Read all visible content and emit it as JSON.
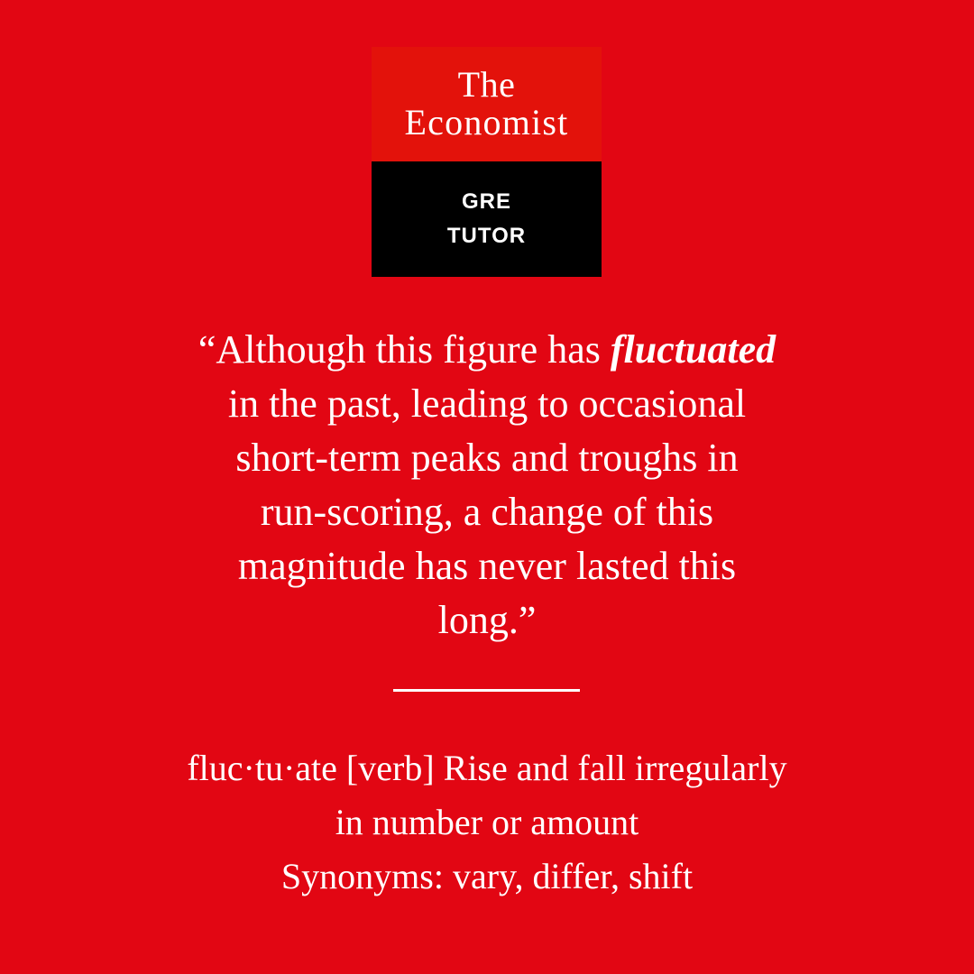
{
  "logo": {
    "name_line1": "The",
    "name_line2": "Economist",
    "sub_line1": "GRE",
    "sub_line2": "TUTOR"
  },
  "quote": {
    "line1_before": "“Although this figure has ",
    "line1_word": "fluctuated",
    "line2": "in the past, leading to occasional",
    "line3": "short-term peaks and troughs in",
    "line4": "run-scoring, a change of this",
    "line5": "magnitude has never lasted this",
    "line6": "long.”"
  },
  "definition": {
    "line1": "fluc·tu·ate [verb] Rise and fall irregularly",
    "line2": "in number or amount",
    "line3": "Synonyms: vary, differ, shift"
  },
  "colors": {
    "background": "#e20613",
    "logo_red": "#e3120b",
    "logo_black": "#000000",
    "text": "#ffffff"
  }
}
